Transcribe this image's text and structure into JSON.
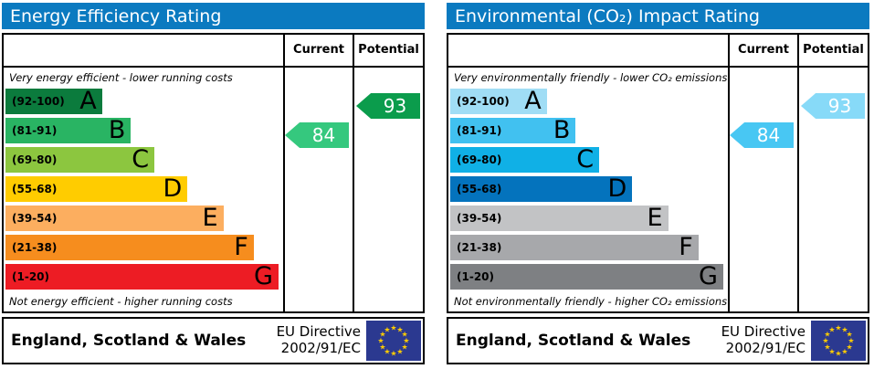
{
  "theme": {
    "title_bar_color": "#0b7ac0",
    "border_color": "#000000",
    "title_text_color": "#ffffff",
    "flag_background": "#2b3990",
    "flag_star_color": "#ffcc00"
  },
  "chart_data": [
    {
      "type": "bar",
      "subtype": "epc-rating",
      "title": "Energy Efficiency Rating",
      "column_headers": {
        "current": "Current",
        "potential": "Potential"
      },
      "top_note": "Very energy efficient - lower running costs",
      "bottom_note": "Not energy efficient - higher running costs",
      "scale_range": [
        1,
        100
      ],
      "bands": [
        {
          "range_label": "(92-100)",
          "letter": "A",
          "min": 92,
          "max": 100,
          "color": "#0b7b3d",
          "width_pct": 35
        },
        {
          "range_label": "(81-91)",
          "letter": "B",
          "min": 81,
          "max": 91,
          "color": "#29b463",
          "width_pct": 45.5
        },
        {
          "range_label": "(69-80)",
          "letter": "C",
          "min": 69,
          "max": 80,
          "color": "#8cc63f",
          "width_pct": 54
        },
        {
          "range_label": "(55-68)",
          "letter": "D",
          "min": 55,
          "max": 68,
          "color": "#ffcc00",
          "width_pct": 66
        },
        {
          "range_label": "(39-54)",
          "letter": "E",
          "min": 39,
          "max": 54,
          "color": "#fcae5f",
          "width_pct": 79
        },
        {
          "range_label": "(21-38)",
          "letter": "F",
          "min": 21,
          "max": 38,
          "color": "#f68d1e",
          "width_pct": 90
        },
        {
          "range_label": "(1-20)",
          "letter": "G",
          "min": 1,
          "max": 20,
          "color": "#ed1c24",
          "width_pct": 99
        }
      ],
      "current": {
        "value": 84,
        "band_letter": "B",
        "band_index": 1,
        "color": "#35c87e"
      },
      "potential": {
        "value": 93,
        "band_letter": "A",
        "band_index": 0,
        "color": "#0b9c4c"
      },
      "footer": {
        "region": "England, Scotland & Wales",
        "directive_line1": "EU Directive",
        "directive_line2": "2002/91/EC"
      }
    },
    {
      "type": "bar",
      "subtype": "epc-rating",
      "title": "Environmental (CO₂) Impact Rating",
      "column_headers": {
        "current": "Current",
        "potential": "Potential"
      },
      "top_note": "Very environmentally friendly - lower CO₂ emissions",
      "bottom_note": "Not environmentally friendly - higher CO₂ emissions",
      "scale_range": [
        1,
        100
      ],
      "bands": [
        {
          "range_label": "(92-100)",
          "letter": "A",
          "min": 92,
          "max": 100,
          "color": "#a0ddf5",
          "width_pct": 35
        },
        {
          "range_label": "(81-91)",
          "letter": "B",
          "min": 81,
          "max": 91,
          "color": "#41c1f0",
          "width_pct": 45.5
        },
        {
          "range_label": "(69-80)",
          "letter": "C",
          "min": 69,
          "max": 80,
          "color": "#10b0e6",
          "width_pct": 54
        },
        {
          "range_label": "(55-68)",
          "letter": "D",
          "min": 55,
          "max": 68,
          "color": "#0473bd",
          "width_pct": 66
        },
        {
          "range_label": "(39-54)",
          "letter": "E",
          "min": 39,
          "max": 54,
          "color": "#c2c3c5",
          "width_pct": 79
        },
        {
          "range_label": "(21-38)",
          "letter": "F",
          "min": 21,
          "max": 38,
          "color": "#a7a8ab",
          "width_pct": 90
        },
        {
          "range_label": "(1-20)",
          "letter": "G",
          "min": 1,
          "max": 20,
          "color": "#7e8083",
          "width_pct": 99
        }
      ],
      "current": {
        "value": 84,
        "band_letter": "B",
        "band_index": 1,
        "color": "#48c7f3"
      },
      "potential": {
        "value": 93,
        "band_letter": "A",
        "band_index": 0,
        "color": "#87daf8"
      },
      "footer": {
        "region": "England, Scotland & Wales",
        "directive_line1": "EU Directive",
        "directive_line2": "2002/91/EC"
      }
    }
  ]
}
